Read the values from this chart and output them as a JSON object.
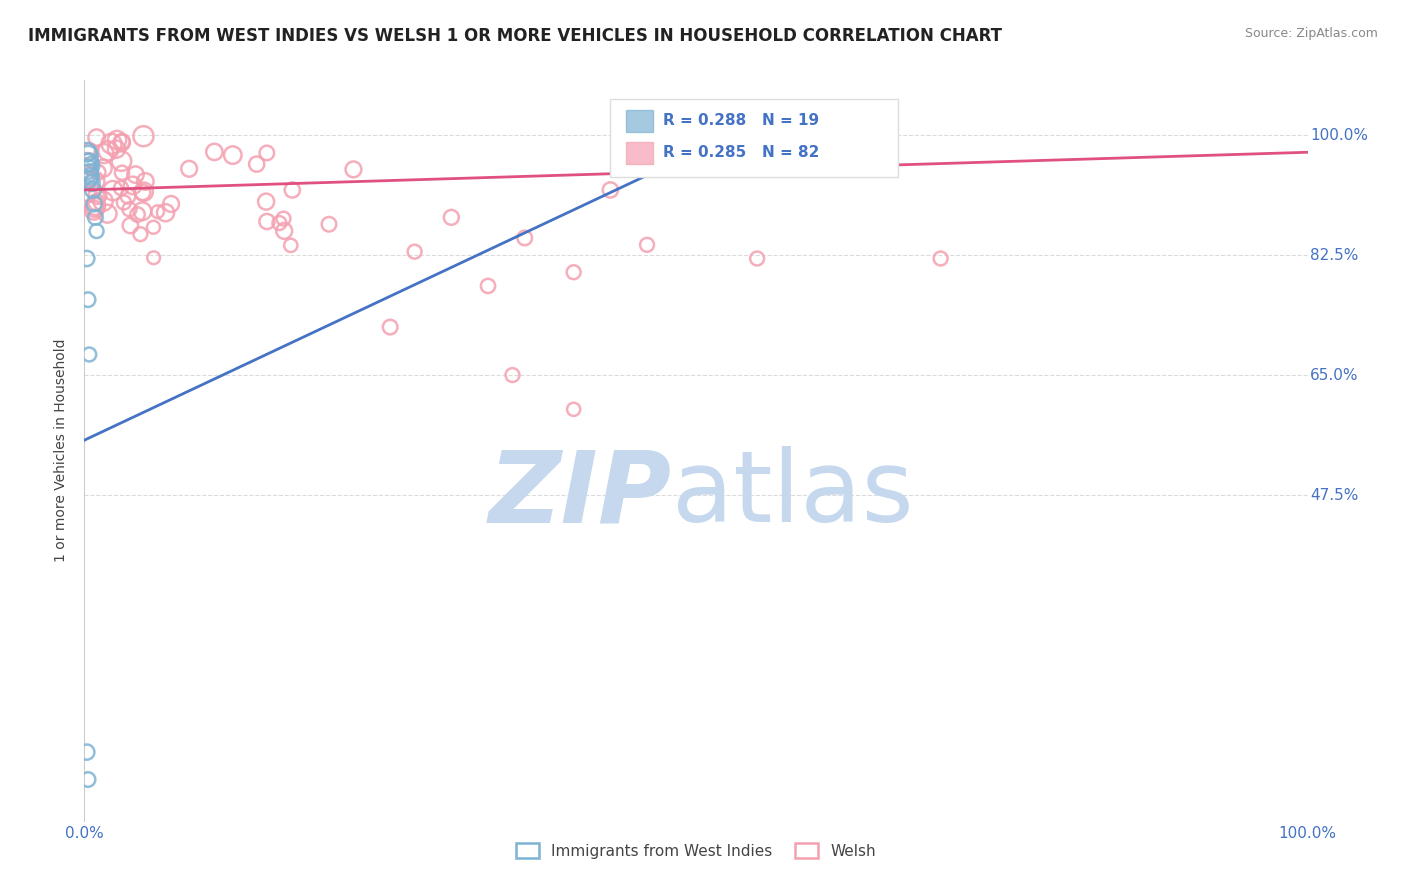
{
  "title": "IMMIGRANTS FROM WEST INDIES VS WELSH 1 OR MORE VEHICLES IN HOUSEHOLD CORRELATION CHART",
  "source": "Source: ZipAtlas.com",
  "ylabel": "1 or more Vehicles in Household",
  "xmin": 0.0,
  "xmax": 1.0,
  "ymin": 0.0,
  "ymax": 1.08,
  "blue_R": 0.288,
  "blue_N": 19,
  "pink_R": 0.285,
  "pink_N": 82,
  "blue_color": "#7fb3d3",
  "pink_color": "#f4a0b0",
  "blue_line_color": "#4472c4",
  "pink_line_color": "#e05080",
  "watermark_zip": "ZIP",
  "watermark_atlas": "atlas",
  "watermark_color_zip": "#c5d8ee",
  "watermark_color_atlas": "#c5d8ee",
  "legend_label_blue": "Immigrants from West Indies",
  "legend_label_pink": "Welsh",
  "ytick_positions": [
    0.475,
    0.65,
    0.825,
    1.0
  ],
  "ytick_labels": [
    "47.5%",
    "65.0%",
    "82.5%",
    "100.0%"
  ],
  "blue_trend_x0": 0.0,
  "blue_trend_y0": 0.555,
  "blue_trend_x1": 0.5,
  "blue_trend_y1": 0.975,
  "pink_trend_x0": 0.0,
  "pink_trend_y0": 0.92,
  "pink_trend_x1": 1.0,
  "pink_trend_y1": 0.975
}
